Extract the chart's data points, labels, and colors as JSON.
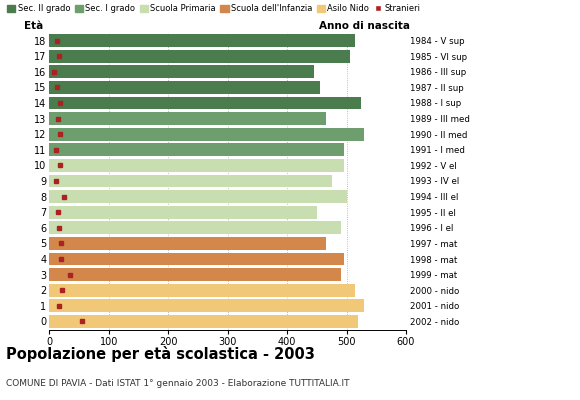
{
  "ages": [
    18,
    17,
    16,
    15,
    14,
    13,
    12,
    11,
    10,
    9,
    8,
    7,
    6,
    5,
    4,
    3,
    2,
    1,
    0
  ],
  "years": [
    "1984 - V sup",
    "1985 - VI sup",
    "1986 - III sup",
    "1987 - II sup",
    "1988 - I sup",
    "1989 - III med",
    "1990 - II med",
    "1991 - I med",
    "1992 - V el",
    "1993 - IV el",
    "1994 - III el",
    "1995 - II el",
    "1996 - I el",
    "1997 - mat",
    "1998 - mat",
    "1999 - mat",
    "2000 - nido",
    "2001 - nido",
    "2002 - nido"
  ],
  "bar_values": [
    515,
    505,
    445,
    455,
    525,
    465,
    530,
    495,
    495,
    475,
    500,
    450,
    490,
    465,
    495,
    490,
    515,
    530,
    520
  ],
  "stranieri": [
    13,
    17,
    8,
    13,
    18,
    15,
    18,
    12,
    18,
    12,
    25,
    14,
    16,
    20,
    20,
    35,
    22,
    16,
    55
  ],
  "bar_colors_by_age": {
    "18": "#4a7c4e",
    "17": "#4a7c4e",
    "16": "#4a7c4e",
    "15": "#4a7c4e",
    "14": "#4a7c4e",
    "13": "#6e9e6e",
    "12": "#6e9e6e",
    "11": "#6e9e6e",
    "10": "#c8ddb0",
    "9": "#c8ddb0",
    "8": "#c8ddb0",
    "7": "#c8ddb0",
    "6": "#c8ddb0",
    "5": "#d4874a",
    "4": "#d4874a",
    "3": "#d4874a",
    "2": "#f0c878",
    "1": "#f0c878",
    "0": "#f0c878"
  },
  "legend_labels": [
    "Sec. II grado",
    "Sec. I grado",
    "Scuola Primaria",
    "Scuola dell'Infanzia",
    "Asilo Nido",
    "Stranieri"
  ],
  "legend_colors": [
    "#4a7c4e",
    "#6e9e6e",
    "#c8ddb0",
    "#d4874a",
    "#f0c878",
    "#aa2222"
  ],
  "title": "Popolazione per età scolastica - 2003",
  "subtitle": "COMUNE DI PAVIA - Dati ISTAT 1° gennaio 2003 - Elaborazione TUTTITALIA.IT",
  "xlabel_left": "Età",
  "xlabel_right": "Anno di nascita",
  "xlim": [
    0,
    600
  ],
  "xticks": [
    0,
    100,
    200,
    300,
    400,
    500,
    600
  ],
  "background_color": "#ffffff",
  "stranieri_color": "#aa2222",
  "bar_height": 0.82
}
